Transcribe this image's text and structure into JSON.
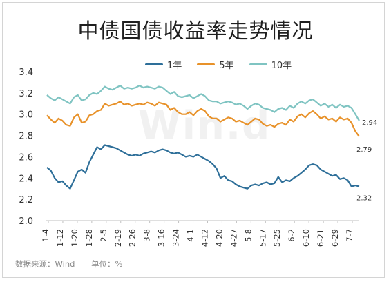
{
  "title": "中债国债收益率走势情况",
  "watermark": "Win.d",
  "footer": {
    "source": "数据来源：Wind",
    "unit": "单位：%"
  },
  "colors": {
    "series_1y": "#2e6f99",
    "series_5y": "#e8922a",
    "series_10y": "#7fc4c2"
  },
  "chart_data": {
    "type": "line",
    "title": "中债国债收益率走势情况",
    "xlabel": "",
    "ylabel": "",
    "ylim": [
      2.0,
      3.4
    ],
    "yticks": [
      "2.0",
      "2.2",
      "2.4",
      "2.6",
      "2.8",
      "3.0",
      "3.2",
      "3.4"
    ],
    "xticks": [
      "1-4",
      "1-12",
      "1-20",
      "1-28",
      "2-5",
      "2-19",
      "2-26",
      "3-8",
      "3-16",
      "3-24",
      "4-1",
      "4-12",
      "4-20",
      "4-27",
      "5-8",
      "5-17",
      "5-25",
      "6-2",
      "6-10",
      "6-21",
      "6-29",
      "7-7"
    ],
    "legend_position": "top",
    "grid": false,
    "series": [
      {
        "name": "1年",
        "color": "#2e6f99",
        "end_label": "2.32",
        "values": [
          2.5,
          2.47,
          2.4,
          2.36,
          2.37,
          2.33,
          2.3,
          2.38,
          2.46,
          2.48,
          2.45,
          2.55,
          2.62,
          2.69,
          2.67,
          2.71,
          2.7,
          2.69,
          2.68,
          2.66,
          2.64,
          2.62,
          2.61,
          2.62,
          2.61,
          2.63,
          2.64,
          2.65,
          2.64,
          2.66,
          2.67,
          2.66,
          2.64,
          2.63,
          2.64,
          2.62,
          2.6,
          2.61,
          2.6,
          2.62,
          2.6,
          2.58,
          2.56,
          2.53,
          2.49,
          2.4,
          2.42,
          2.38,
          2.37,
          2.34,
          2.32,
          2.31,
          2.3,
          2.33,
          2.34,
          2.33,
          2.35,
          2.36,
          2.34,
          2.35,
          2.41,
          2.36,
          2.38,
          2.37,
          2.4,
          2.42,
          2.45,
          2.48,
          2.52,
          2.53,
          2.52,
          2.48,
          2.46,
          2.44,
          2.42,
          2.43,
          2.39,
          2.4,
          2.38,
          2.32,
          2.33,
          2.32
        ]
      },
      {
        "name": "5年",
        "color": "#e8922a",
        "end_label": "2.79",
        "values": [
          2.99,
          2.95,
          2.92,
          2.96,
          2.94,
          2.9,
          2.89,
          2.97,
          3.0,
          2.92,
          2.93,
          2.99,
          3.0,
          3.03,
          3.04,
          3.1,
          3.08,
          3.09,
          3.1,
          3.12,
          3.09,
          3.1,
          3.08,
          3.09,
          3.1,
          3.09,
          3.11,
          3.1,
          3.08,
          3.11,
          3.1,
          3.09,
          3.04,
          3.06,
          3.02,
          3.0,
          3.0,
          3.02,
          2.99,
          3.03,
          3.05,
          3.03,
          2.98,
          2.96,
          2.96,
          2.93,
          2.95,
          2.97,
          2.96,
          2.93,
          2.94,
          2.92,
          2.9,
          2.93,
          2.96,
          2.95,
          2.91,
          2.89,
          2.9,
          2.88,
          2.91,
          2.92,
          2.9,
          2.95,
          2.93,
          2.98,
          3.0,
          2.97,
          3.01,
          3.03,
          3.0,
          2.96,
          2.98,
          2.95,
          2.96,
          2.93,
          2.97,
          2.95,
          2.96,
          2.92,
          2.84,
          2.79
        ]
      },
      {
        "name": "10年",
        "color": "#7fc4c2",
        "end_label": "2.94",
        "values": [
          3.18,
          3.15,
          3.13,
          3.16,
          3.14,
          3.12,
          3.1,
          3.16,
          3.18,
          3.13,
          3.14,
          3.18,
          3.2,
          3.19,
          3.22,
          3.26,
          3.24,
          3.23,
          3.25,
          3.27,
          3.24,
          3.25,
          3.24,
          3.25,
          3.27,
          3.25,
          3.26,
          3.25,
          3.24,
          3.26,
          3.25,
          3.22,
          3.19,
          3.21,
          3.17,
          3.16,
          3.17,
          3.18,
          3.15,
          3.17,
          3.19,
          3.17,
          3.13,
          3.12,
          3.12,
          3.1,
          3.11,
          3.12,
          3.11,
          3.09,
          3.1,
          3.08,
          3.05,
          3.08,
          3.1,
          3.09,
          3.06,
          3.05,
          3.04,
          3.02,
          3.05,
          3.06,
          3.04,
          3.08,
          3.06,
          3.1,
          3.12,
          3.1,
          3.13,
          3.14,
          3.11,
          3.08,
          3.1,
          3.07,
          3.09,
          3.06,
          3.09,
          3.07,
          3.08,
          3.06,
          3.0,
          2.94
        ]
      }
    ]
  }
}
